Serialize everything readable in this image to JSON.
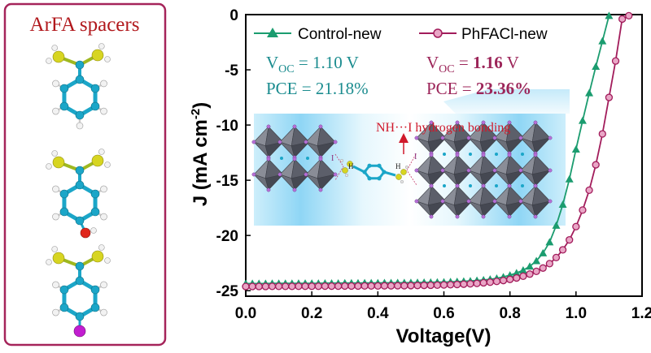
{
  "panel": {
    "title": "ArFA spacers",
    "molecules": [
      {
        "substituent": "H"
      },
      {
        "substituent": "O"
      },
      {
        "substituent": "I"
      }
    ]
  },
  "colors": {
    "panel_border": "#a5245a",
    "panel_title": "#b1181c",
    "control": "#1b9c6f",
    "phfacl": "#a21c5b",
    "control_text": "#1b8c8f",
    "phfacl_text": "#9c2559",
    "hbond_text": "#d0192b",
    "glow": "#7fd0f2",
    "octahedra": "#5c5f6a",
    "atom_blue": "#1ba6c8",
    "atom_yellow": "#d7d521",
    "atom_purple": "#b66fd6"
  },
  "chart_data": {
    "type": "line",
    "xlabel": "Voltage(V)",
    "ylabel": "J (mA cm",
    "ylabel_sup": "-2",
    "ylabel_close": ")",
    "xlim": [
      0.0,
      1.2
    ],
    "ylim": [
      -25.5,
      0
    ],
    "xticks": [
      "0.0",
      "0.2",
      "0.4",
      "0.6",
      "0.8",
      "1.0",
      "1.2"
    ],
    "yticks": [
      "0",
      "-5",
      "-10",
      "-15",
      "-20",
      "-25"
    ],
    "xtick_values": [
      0.0,
      0.2,
      0.4,
      0.6,
      0.8,
      1.0,
      1.2
    ],
    "ytick_values": [
      0,
      -5,
      -10,
      -15,
      -20,
      -25
    ],
    "grid": false,
    "legend_position": "top",
    "series": [
      {
        "name": "Control-new",
        "marker": "triangle",
        "x": [
          0.0,
          0.02,
          0.04,
          0.06,
          0.08,
          0.1,
          0.12,
          0.14,
          0.16,
          0.18,
          0.2,
          0.22,
          0.24,
          0.26,
          0.28,
          0.3,
          0.32,
          0.34,
          0.36,
          0.38,
          0.4,
          0.42,
          0.44,
          0.46,
          0.48,
          0.5,
          0.52,
          0.54,
          0.56,
          0.58,
          0.6,
          0.62,
          0.64,
          0.66,
          0.68,
          0.7,
          0.72,
          0.74,
          0.76,
          0.78,
          0.8,
          0.82,
          0.84,
          0.86,
          0.88,
          0.9,
          0.92,
          0.94,
          0.96,
          0.98,
          1.0,
          1.02,
          1.04,
          1.06,
          1.08,
          1.1
        ],
        "y": [
          -24.35,
          -24.35,
          -24.35,
          -24.35,
          -24.34,
          -24.34,
          -24.34,
          -24.34,
          -24.33,
          -24.33,
          -24.33,
          -24.33,
          -24.32,
          -24.32,
          -24.32,
          -24.31,
          -24.31,
          -24.31,
          -24.3,
          -24.3,
          -24.3,
          -24.29,
          -24.29,
          -24.28,
          -24.28,
          -24.27,
          -24.26,
          -24.25,
          -24.24,
          -24.23,
          -24.22,
          -24.2,
          -24.18,
          -24.15,
          -24.12,
          -24.08,
          -24.03,
          -23.97,
          -23.88,
          -23.76,
          -23.6,
          -23.4,
          -23.15,
          -22.8,
          -22.3,
          -21.6,
          -20.6,
          -19.1,
          -17.2,
          -14.9,
          -12.2,
          -9.6,
          -7.1,
          -4.7,
          -2.4,
          -0.1
        ]
      },
      {
        "name": "PhFACl-new",
        "marker": "circle",
        "x": [
          0.0,
          0.02,
          0.04,
          0.06,
          0.08,
          0.1,
          0.12,
          0.14,
          0.16,
          0.18,
          0.2,
          0.22,
          0.24,
          0.26,
          0.28,
          0.3,
          0.32,
          0.34,
          0.36,
          0.38,
          0.4,
          0.42,
          0.44,
          0.46,
          0.48,
          0.5,
          0.52,
          0.54,
          0.56,
          0.58,
          0.6,
          0.62,
          0.64,
          0.66,
          0.68,
          0.7,
          0.72,
          0.74,
          0.76,
          0.78,
          0.8,
          0.82,
          0.84,
          0.86,
          0.88,
          0.9,
          0.92,
          0.94,
          0.96,
          0.98,
          1.0,
          1.02,
          1.04,
          1.06,
          1.08,
          1.1,
          1.12,
          1.14,
          1.16
        ],
        "y": [
          -24.62,
          -24.62,
          -24.62,
          -24.62,
          -24.61,
          -24.61,
          -24.61,
          -24.61,
          -24.6,
          -24.6,
          -24.6,
          -24.6,
          -24.59,
          -24.59,
          -24.59,
          -24.58,
          -24.58,
          -24.58,
          -24.57,
          -24.57,
          -24.57,
          -24.56,
          -24.56,
          -24.55,
          -24.55,
          -24.54,
          -24.53,
          -24.52,
          -24.51,
          -24.5,
          -24.48,
          -24.46,
          -24.44,
          -24.41,
          -24.38,
          -24.34,
          -24.29,
          -24.23,
          -24.16,
          -24.08,
          -23.98,
          -23.85,
          -23.69,
          -23.5,
          -23.25,
          -22.95,
          -22.55,
          -22.0,
          -21.3,
          -20.4,
          -19.2,
          -17.7,
          -15.9,
          -13.6,
          -10.8,
          -7.5,
          -4.2,
          -0.4,
          -0.1
        ]
      }
    ],
    "annotations": {
      "control_voc": {
        "label": "V",
        "sub": "OC",
        "rest": " = 1.10 V"
      },
      "control_pce": {
        "text": "PCE = 21.18%"
      },
      "phfacl_voc": {
        "label": "V",
        "sub": "OC",
        "mid": " = ",
        "value": "1.16",
        "unit": " V"
      },
      "phfacl_pce": {
        "prefix": "PCE = ",
        "value": "23.36%"
      },
      "hbond": {
        "nh": "NH",
        "dots": "···",
        "rest": "I hydrogen bonding"
      },
      "inset_labels": {
        "iodine": "I",
        "hydrogen": "H"
      }
    }
  }
}
